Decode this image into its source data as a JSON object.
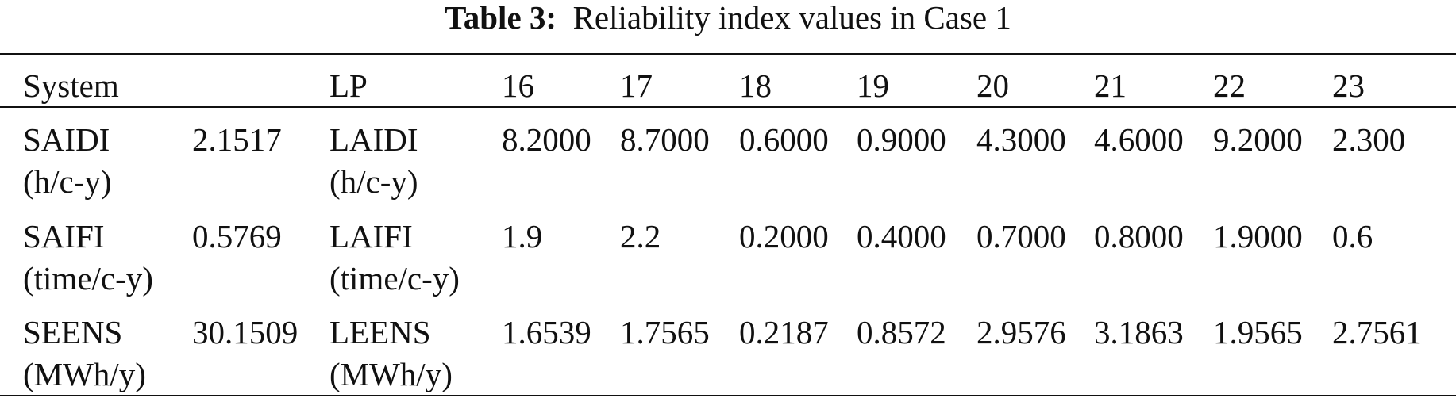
{
  "title": {
    "label": "Table 3:",
    "text": "Reliability index values in Case 1"
  },
  "table": {
    "header": [
      "System",
      "LP",
      "16",
      "17",
      "18",
      "19",
      "20",
      "21",
      "22",
      "23"
    ],
    "rows": [
      [
        [
          "SAIDI",
          "(h/c-y)"
        ],
        [
          "2.1517"
        ],
        [
          "LAIDI",
          "(h/c-y)"
        ],
        [
          "8.2000"
        ],
        [
          "8.7000"
        ],
        [
          "0.6000"
        ],
        [
          "0.9000"
        ],
        [
          "4.3000"
        ],
        [
          "4.6000"
        ],
        [
          "9.2000"
        ],
        [
          "2.300"
        ]
      ],
      [
        [
          "SAIFI",
          "(time/c-y)"
        ],
        [
          "0.5769"
        ],
        [
          "LAIFI",
          "(time/c-y)"
        ],
        [
          "1.9"
        ],
        [
          "2.2"
        ],
        [
          "0.2000"
        ],
        [
          "0.4000"
        ],
        [
          "0.7000"
        ],
        [
          "0.8000"
        ],
        [
          "1.9000"
        ],
        [
          "0.6"
        ]
      ],
      [
        [
          "SEENS",
          "(MWh/y)"
        ],
        [
          "30.1509"
        ],
        [
          "LEENS",
          "(MWh/y)"
        ],
        [
          "1.6539"
        ],
        [
          "1.7565"
        ],
        [
          "0.2187"
        ],
        [
          "0.8572"
        ],
        [
          "2.9576"
        ],
        [
          "3.1863"
        ],
        [
          "1.9565"
        ],
        [
          "2.7561"
        ]
      ]
    ]
  }
}
